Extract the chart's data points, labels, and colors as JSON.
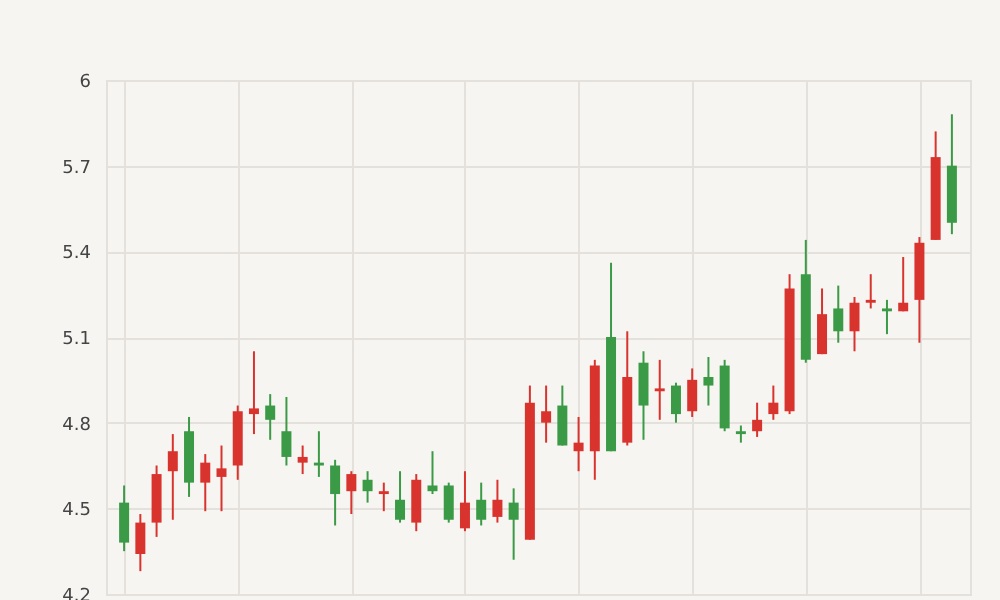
{
  "chart_data": {
    "type": "candlestick",
    "categories": [
      null,
      null,
      null,
      null,
      null,
      null,
      null,
      null,
      null,
      null,
      null,
      null,
      null,
      null,
      null,
      null,
      null,
      null,
      null,
      null,
      null,
      null,
      null,
      null,
      null,
      null,
      null,
      null,
      null,
      null,
      null,
      null,
      null,
      null,
      null,
      null,
      null,
      null,
      null,
      null,
      null,
      null,
      null,
      null,
      null,
      null,
      null,
      null,
      null,
      null,
      null,
      null
    ],
    "ohlc": [
      [
        4.52,
        4.58,
        4.35,
        4.38
      ],
      [
        4.34,
        4.48,
        4.28,
        4.45
      ],
      [
        4.45,
        4.65,
        4.4,
        4.62
      ],
      [
        4.63,
        4.76,
        4.46,
        4.7
      ],
      [
        4.77,
        4.82,
        4.54,
        4.59
      ],
      [
        4.59,
        4.69,
        4.49,
        4.66
      ],
      [
        4.61,
        4.72,
        4.49,
        4.64
      ],
      [
        4.65,
        4.86,
        4.6,
        4.84
      ],
      [
        4.83,
        5.05,
        4.76,
        4.85
      ],
      [
        4.86,
        4.9,
        4.74,
        4.81
      ],
      [
        4.77,
        4.89,
        4.65,
        4.68
      ],
      [
        4.66,
        4.72,
        4.62,
        4.68
      ],
      [
        4.66,
        4.77,
        4.61,
        4.65
      ],
      [
        4.65,
        4.67,
        4.44,
        4.55
      ],
      [
        4.56,
        4.63,
        4.48,
        4.62
      ],
      [
        4.6,
        4.63,
        4.52,
        4.56
      ],
      [
        4.55,
        4.59,
        4.49,
        4.56
      ],
      [
        4.53,
        4.63,
        4.45,
        4.46
      ],
      [
        4.45,
        4.62,
        4.42,
        4.6
      ],
      [
        4.58,
        4.7,
        4.55,
        4.56
      ],
      [
        4.58,
        4.59,
        4.45,
        4.46
      ],
      [
        4.43,
        4.63,
        4.42,
        4.52
      ],
      [
        4.53,
        4.59,
        4.44,
        4.46
      ],
      [
        4.47,
        4.6,
        4.45,
        4.53
      ],
      [
        4.52,
        4.57,
        4.32,
        4.46
      ],
      [
        4.39,
        4.93,
        4.39,
        4.87
      ],
      [
        4.8,
        4.93,
        4.73,
        4.84
      ],
      [
        4.86,
        4.93,
        4.72,
        4.72
      ],
      [
        4.7,
        4.82,
        4.63,
        4.73
      ],
      [
        4.7,
        5.02,
        4.6,
        5.0
      ],
      [
        5.1,
        5.36,
        4.7,
        4.7
      ],
      [
        4.73,
        5.12,
        4.72,
        4.96
      ],
      [
        5.01,
        5.05,
        4.74,
        4.86
      ],
      [
        4.91,
        5.02,
        4.81,
        4.92
      ],
      [
        4.93,
        4.94,
        4.8,
        4.83
      ],
      [
        4.84,
        4.99,
        4.82,
        4.95
      ],
      [
        4.96,
        5.03,
        4.86,
        4.93
      ],
      [
        5.0,
        5.02,
        4.77,
        4.78
      ],
      [
        4.77,
        4.79,
        4.73,
        4.76
      ],
      [
        4.77,
        4.87,
        4.75,
        4.81
      ],
      [
        4.83,
        4.93,
        4.81,
        4.87
      ],
      [
        4.84,
        5.32,
        4.83,
        5.27
      ],
      [
        5.32,
        5.44,
        5.01,
        5.02
      ],
      [
        5.04,
        5.27,
        5.04,
        5.18
      ],
      [
        5.2,
        5.28,
        5.08,
        5.12
      ],
      [
        5.12,
        5.24,
        5.05,
        5.22
      ],
      [
        5.22,
        5.32,
        5.2,
        5.23
      ],
      [
        5.2,
        5.23,
        5.11,
        5.19
      ],
      [
        5.19,
        5.38,
        5.19,
        5.22
      ],
      [
        5.23,
        5.45,
        5.08,
        5.43
      ],
      [
        5.44,
        5.82,
        5.44,
        5.73
      ],
      [
        5.7,
        5.88,
        5.46,
        5.5
      ]
    ],
    "colors": [
      "#3a9a45",
      "#d9332e",
      "#d9332e",
      "#d9332e",
      "#3a9a45",
      "#d9332e",
      "#d9332e",
      "#d9332e",
      "#d9332e",
      "#3a9a45",
      "#3a9a45",
      "#d9332e",
      "#3a9a45",
      "#3a9a45",
      "#d9332e",
      "#3a9a45",
      "#d9332e",
      "#3a9a45",
      "#d9332e",
      "#3a9a45",
      "#3a9a45",
      "#d9332e",
      "#3a9a45",
      "#d9332e",
      "#3a9a45",
      "#d9332e",
      "#d9332e",
      "#3a9a45",
      "#d9332e",
      "#d9332e",
      "#3a9a45",
      "#d9332e",
      "#3a9a45",
      "#d9332e",
      "#3a9a45",
      "#d9332e",
      "#3a9a45",
      "#3a9a45",
      "#3a9a45",
      "#d9332e",
      "#d9332e",
      "#d9332e",
      "#3a9a45",
      "#d9332e",
      "#3a9a45",
      "#d9332e",
      "#d9332e",
      "#3a9a45",
      "#d9332e",
      "#d9332e",
      "#d9332e",
      "#3a9a45"
    ],
    "ylim": [
      4.2,
      6
    ],
    "yticks": [
      4.2,
      4.5,
      4.8,
      5.1,
      5.4,
      5.7,
      6
    ],
    "grid": true,
    "tick_labels": "y"
  }
}
